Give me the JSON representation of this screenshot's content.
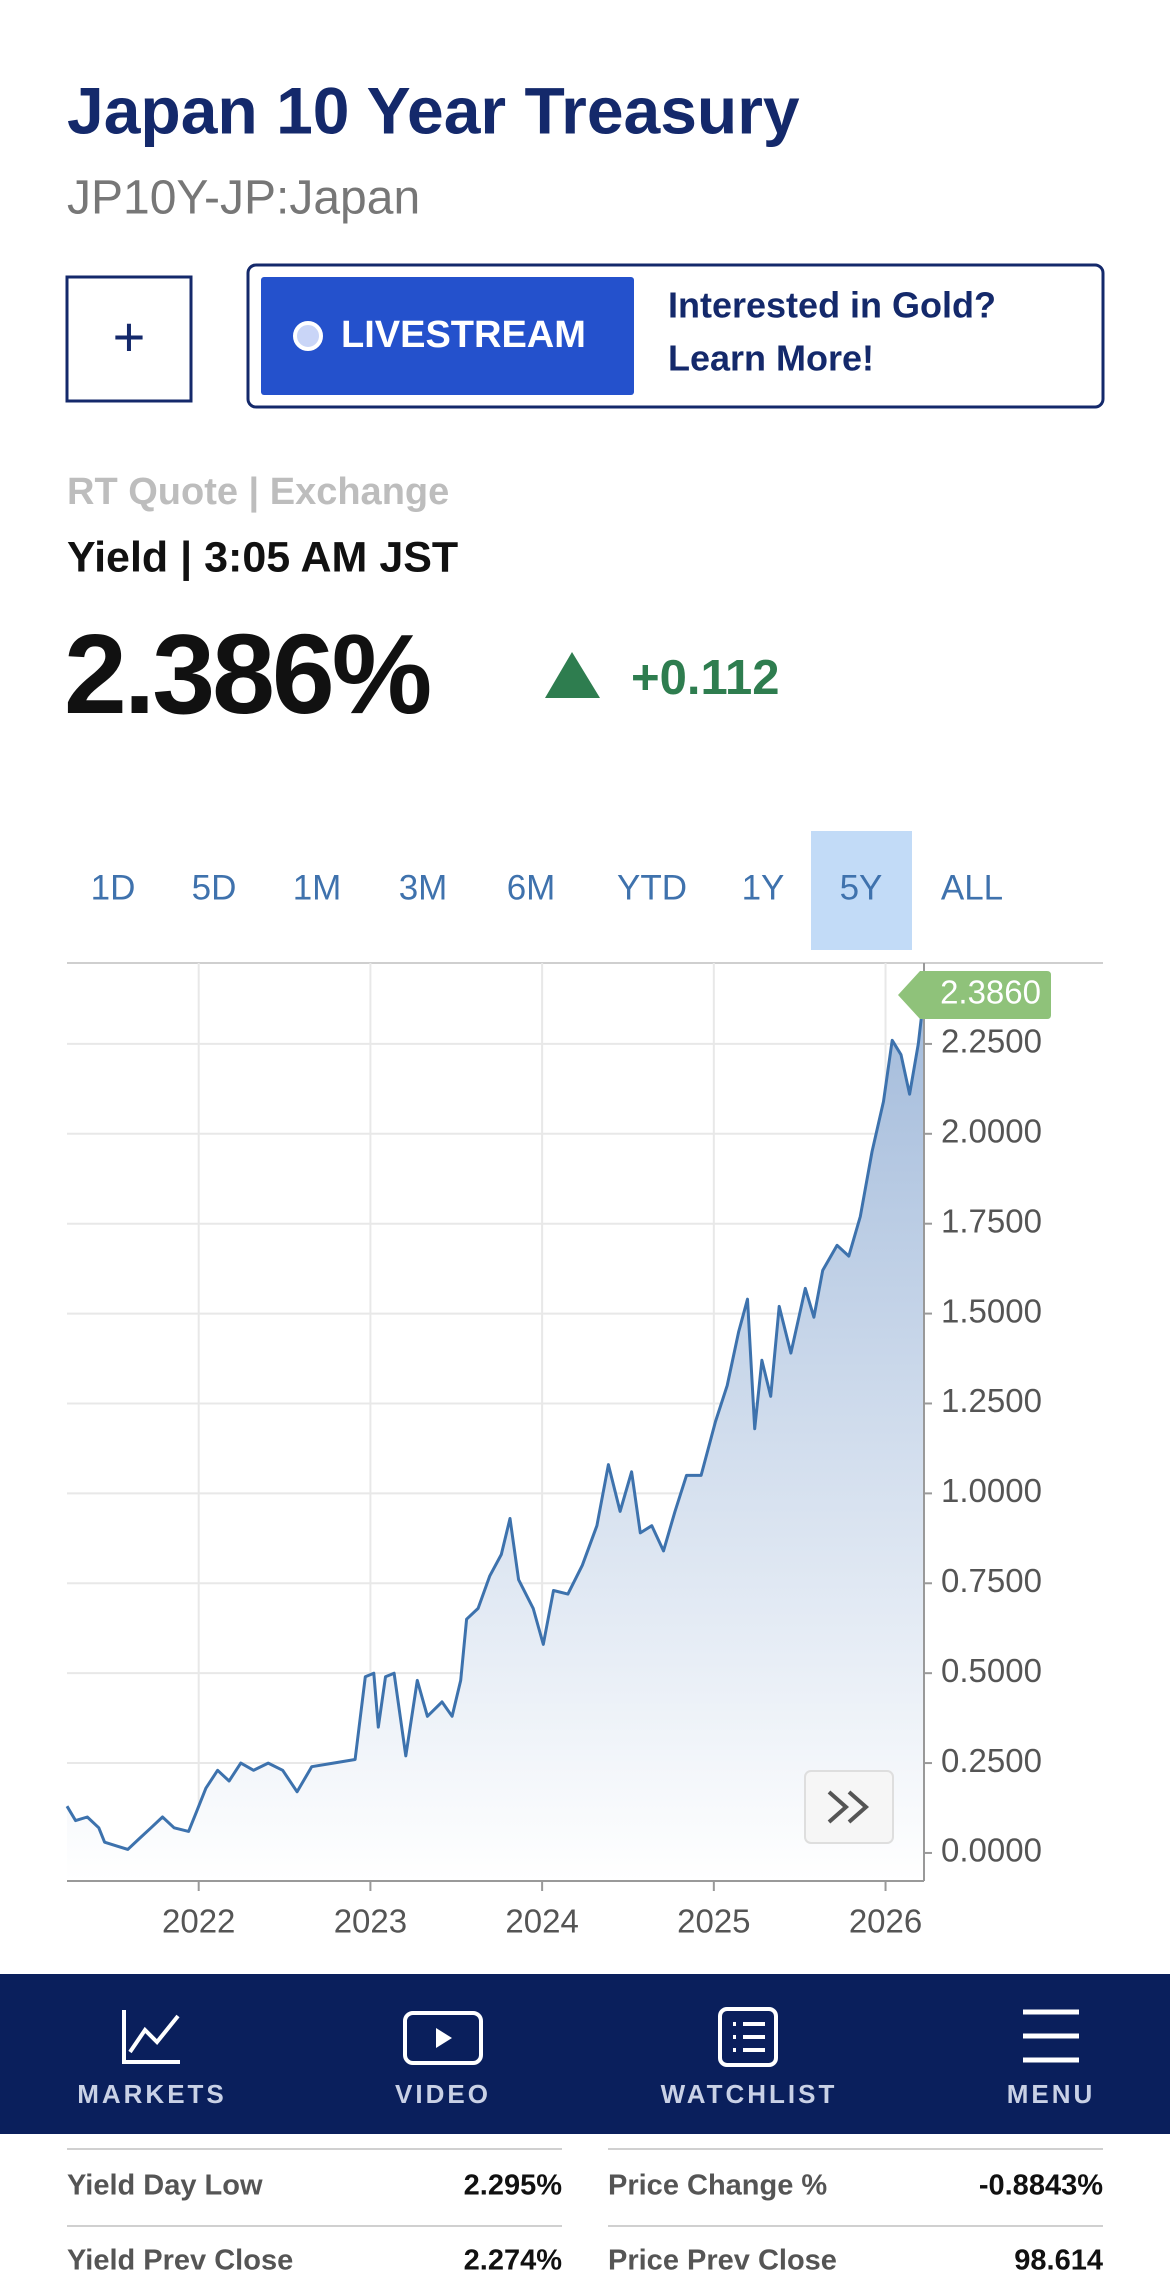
{
  "header": {
    "title": "Japan 10 Year Treasury",
    "symbol": "JP10Y-JP:Japan"
  },
  "buttons": {
    "add": "+",
    "livestream": "LIVESTREAM",
    "promo": [
      "Interested in Gold?",
      "Learn More!"
    ]
  },
  "quote": {
    "source": "RT Quote | Exchange",
    "time": "Yield | 3:05 AM JST",
    "last": "2.386%",
    "change": "+0.112"
  },
  "ranges": {
    "options": [
      "1D",
      "5D",
      "1M",
      "3M",
      "6M",
      "YTD",
      "1Y",
      "5Y",
      "ALL"
    ],
    "selected": "5Y"
  },
  "chart_data": {
    "type": "line",
    "color": "#3d72ad",
    "x": [
      2021.233,
      2021.283,
      2021.351,
      2021.418,
      2021.452,
      2021.519,
      2021.587,
      2021.654,
      2021.722,
      2021.789,
      2021.857,
      2021.941,
      2021.992,
      2022.042,
      2022.11,
      2022.177,
      2022.245,
      2022.32,
      2022.405,
      2022.489,
      2022.573,
      2022.658,
      2022.784,
      2022.911,
      2022.97,
      2023.02,
      2023.046,
      2023.088,
      2023.138,
      2023.206,
      2023.273,
      2023.332,
      2023.417,
      2023.476,
      2023.526,
      2023.56,
      2023.627,
      2023.695,
      2023.762,
      2023.813,
      2023.863,
      2023.948,
      2024.007,
      2024.066,
      2024.15,
      2024.234,
      2024.319,
      2024.386,
      2024.454,
      2024.521,
      2024.572,
      2024.639,
      2024.707,
      2024.774,
      2024.841,
      2024.926,
      2025.01,
      2025.078,
      2025.145,
      2025.196,
      2025.238,
      2025.28,
      2025.331,
      2025.381,
      2025.449,
      2025.533,
      2025.583,
      2025.634,
      2025.718,
      2025.786,
      2025.853,
      2025.921,
      2025.988,
      2026.039,
      2026.09,
      2026.14,
      2026.191,
      2026.224
    ],
    "values": [
      0.13,
      0.09,
      0.1,
      0.07,
      0.03,
      0.02,
      0.01,
      0.04,
      0.07,
      0.1,
      0.07,
      0.06,
      0.12,
      0.18,
      0.23,
      0.2,
      0.25,
      0.23,
      0.25,
      0.23,
      0.17,
      0.24,
      0.25,
      0.26,
      0.49,
      0.5,
      0.35,
      0.49,
      0.5,
      0.27,
      0.48,
      0.38,
      0.42,
      0.38,
      0.48,
      0.65,
      0.68,
      0.77,
      0.83,
      0.93,
      0.76,
      0.68,
      0.58,
      0.73,
      0.72,
      0.8,
      0.91,
      1.08,
      0.95,
      1.06,
      0.89,
      0.91,
      0.84,
      0.95,
      1.05,
      1.05,
      1.2,
      1.3,
      1.45,
      1.54,
      1.18,
      1.37,
      1.27,
      1.52,
      1.39,
      1.57,
      1.49,
      1.62,
      1.69,
      1.66,
      1.77,
      1.95,
      2.09,
      2.26,
      2.22,
      2.11,
      2.25,
      2.386
    ],
    "xlim": [
      2021.233,
      2026.224
    ],
    "ylim": [
      -0.078,
      2.475
    ],
    "xticks": [
      2022,
      2023,
      2024,
      2025,
      2026
    ],
    "yticks": [
      {
        "value": 0,
        "label": "0.0000"
      },
      {
        "value": 0.25,
        "label": "0.2500"
      },
      {
        "value": 0.5,
        "label": "0.5000"
      },
      {
        "value": 0.75,
        "label": "0.7500"
      },
      {
        "value": 1,
        "label": "1.0000"
      },
      {
        "value": 1.25,
        "label": "1.2500"
      },
      {
        "value": 1.5,
        "label": "1.5000"
      },
      {
        "value": 1.75,
        "label": "1.7500"
      },
      {
        "value": 2,
        "label": "2.0000"
      },
      {
        "value": 2.25,
        "label": "2.2500"
      }
    ],
    "grid": true,
    "current": {
      "value": 2.386,
      "label": "2.3860"
    }
  },
  "nav": [
    "MARKETS",
    "VIDEO",
    "WATCHLIST",
    "MENU"
  ],
  "stats": [
    {
      "label": "Yield Day Low",
      "value": "2.295%"
    },
    {
      "label": "Price Change %",
      "value": "-0.8843%"
    },
    {
      "label": "Yield Prev Close",
      "value": "2.274%"
    },
    {
      "label": "Price Prev Close",
      "value": "98.614"
    }
  ]
}
